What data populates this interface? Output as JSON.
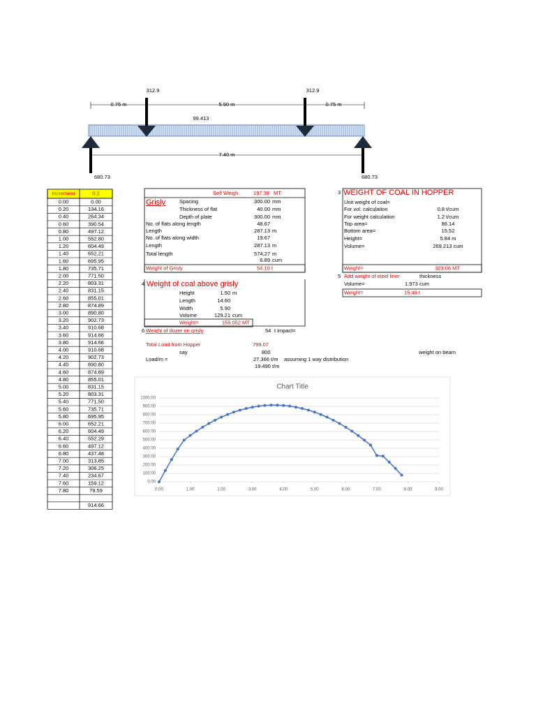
{
  "beam": {
    "load_left": "312.9",
    "load_right": "312.9",
    "dim_left": "0.75 m",
    "dim_mid": "5.90 m",
    "dim_right": "0.75 m",
    "udl": "99.413",
    "span": "7.40 m",
    "reaction_left": "680.73",
    "reaction_right": "680.73"
  },
  "table": {
    "header": [
      "Increment",
      "0.2"
    ],
    "rows": [
      [
        "0.00",
        "0.00"
      ],
      [
        "0.20",
        "134.16"
      ],
      [
        "0.40",
        "264.34"
      ],
      [
        "0.60",
        "390.54"
      ],
      [
        "0.80",
        "497.12"
      ],
      [
        "1.00",
        "552.80"
      ],
      [
        "1.20",
        "604.49"
      ],
      [
        "1.40",
        "652.21"
      ],
      [
        "1.60",
        "695.95"
      ],
      [
        "1.80",
        "735.71"
      ],
      [
        "2.00",
        "771.50"
      ],
      [
        "2.20",
        "803.31"
      ],
      [
        "2.40",
        "831.15"
      ],
      [
        "2.60",
        "855.01"
      ],
      [
        "2.80",
        "874.89"
      ],
      [
        "3.00",
        "890.80"
      ],
      [
        "3.20",
        "902.73"
      ],
      [
        "3.40",
        "910.68"
      ],
      [
        "3.60",
        "914.66"
      ],
      [
        "3.80",
        "914.66"
      ],
      [
        "4.00",
        "910.68"
      ],
      [
        "4.20",
        "902.73"
      ],
      [
        "4.40",
        "890.80"
      ],
      [
        "4.60",
        "874.89"
      ],
      [
        "4.80",
        "855.01"
      ],
      [
        "5.00",
        "831.15"
      ],
      [
        "5.20",
        "803.31"
      ],
      [
        "5.40",
        "771.50"
      ],
      [
        "5.60",
        "735.71"
      ],
      [
        "5.80",
        "695.95"
      ],
      [
        "6.00",
        "652.21"
      ],
      [
        "6.20",
        "604.49"
      ],
      [
        "6.40",
        "552.29"
      ],
      [
        "6.60",
        "497.12"
      ],
      [
        "6.80",
        "437.48"
      ],
      [
        "7.00",
        "313.85"
      ],
      [
        "7.20",
        "306.25"
      ],
      [
        "7.40",
        "234.67"
      ],
      [
        "7.60",
        "159.12"
      ],
      [
        "7.80",
        "79.59"
      ]
    ],
    "total": "914.66"
  },
  "grisly": {
    "self_weight": {
      "label": "Self Weigh",
      "value": "197.38",
      "unit": "MT"
    },
    "title": "Grisly",
    "rows": [
      {
        "label": "Spacing",
        "value": "300.00",
        "unit": "mm"
      },
      {
        "label": "Thickness of flat",
        "value": "40.00",
        "unit": "mm"
      },
      {
        "label": "Depth of plate",
        "value": "300.00",
        "unit": "mm"
      },
      {
        "label": "No. of flats along length",
        "value": "48.67"
      },
      {
        "label": "Length",
        "value": "287.13",
        "unit": "m"
      },
      {
        "label": "No. of flats along width",
        "value": "19.67"
      },
      {
        "label": "Length",
        "value": "287.13",
        "unit": "m"
      },
      {
        "label": "Total length",
        "value": "574.27",
        "unit": "m"
      },
      {
        "value": "6.89",
        "unit": "cum"
      }
    ],
    "weight": {
      "label": "Weight of Grisly",
      "value": "54.10 t"
    }
  },
  "coal_above": {
    "number": "4",
    "title": "Weight of  coal above grisly",
    "rows": [
      {
        "label": "Height",
        "value": "1.50",
        "unit": "m"
      },
      {
        "label": "Length",
        "value": "14.60"
      },
      {
        "label": "Width",
        "value": "5.90"
      },
      {
        "label": "Volume",
        "value": "129.21",
        "unit": "cum"
      }
    ],
    "weight": {
      "label": "Weight=",
      "value": "155.052",
      "unit": "MT"
    }
  },
  "dozer": {
    "number": "6",
    "label": "Weight of dozer on grisly",
    "value": "54",
    "unit": "t impact="
  },
  "total_load": {
    "label": "Total Load from Hopper",
    "value": "799.07",
    "say_label": "say",
    "say_value": "800",
    "load_label": "Load/m =",
    "load_value": "27.366 t/m",
    "load_note": "assuming 1 way distribution",
    "beam_value": "19.490 t/m",
    "beam_note": "weight on beam"
  },
  "hopper": {
    "number": "3",
    "title": "WEIGHT OF COAL IN HOPPER",
    "rows": [
      {
        "label": "Unit weight of coal="
      },
      {
        "label": "For vol. calculation",
        "value": "0.8 t/cum"
      },
      {
        "label": "For weight calculation",
        "value": "1.2 t/cum"
      },
      {
        "label": "Top area=",
        "value": "86.14"
      },
      {
        "label": "Bottom area=",
        "value": "15.52"
      },
      {
        "label": "Height=",
        "value": "5.84 m"
      },
      {
        "label": "Volume=",
        "value": "269.213 cum"
      }
    ],
    "weight": {
      "label": "Weight=",
      "value": "323.06 MT"
    }
  },
  "liner": {
    "number": "5",
    "title": "Add weight of steel liner",
    "note": "thickness",
    "volume_label": "Volume=",
    "volume_value": "1.973 cum",
    "weight_label": "Weight=",
    "weight_value": "15.49 t"
  },
  "chart_data": {
    "type": "line",
    "title": "Chart Title",
    "markers": true,
    "grid": true,
    "x": [
      0,
      0.2,
      0.4,
      0.6,
      0.8,
      1,
      1.2,
      1.4,
      1.6,
      1.8,
      2,
      2.2,
      2.4,
      2.6,
      2.8,
      3,
      3.2,
      3.4,
      3.6,
      3.8,
      4,
      4.2,
      4.4,
      4.6,
      4.8,
      5,
      5.2,
      5.4,
      5.6,
      5.8,
      6,
      6.2,
      6.4,
      6.6,
      6.8,
      7,
      7.2,
      7.4,
      7.6,
      7.8
    ],
    "series": [
      {
        "color": "#4472c4",
        "values": [
          0,
          134.16,
          264.34,
          390.54,
          497.12,
          552.8,
          604.49,
          652.21,
          695.95,
          735.71,
          771.5,
          803.31,
          831.15,
          855.01,
          874.89,
          890.8,
          902.73,
          910.68,
          914.66,
          914.66,
          910.68,
          902.73,
          890.8,
          874.89,
          855.01,
          831.15,
          803.31,
          771.5,
          735.71,
          695.95,
          652.21,
          604.49,
          552.29,
          497.12,
          437.48,
          313.85,
          306.25,
          234.67,
          159.12,
          79.59
        ]
      }
    ],
    "xlim": [
      0,
      9
    ],
    "ylim": [
      0,
      1000
    ],
    "xticks": [
      {
        "value": 0,
        "label": "0.00"
      },
      {
        "value": 1,
        "label": "1.00"
      },
      {
        "value": 2,
        "label": "2.00"
      },
      {
        "value": 3,
        "label": "3.00"
      },
      {
        "value": 4,
        "label": "4.00"
      },
      {
        "value": 5,
        "label": "5.00"
      },
      {
        "value": 6,
        "label": "6.00"
      },
      {
        "value": 7,
        "label": "7.00"
      },
      {
        "value": 8,
        "label": "8.00"
      },
      {
        "value": 9,
        "label": "9.00"
      }
    ],
    "yticks": [
      {
        "value": 0,
        "label": "0.00"
      },
      {
        "value": 100,
        "label": "100.00"
      },
      {
        "value": 200,
        "label": "200.00"
      },
      {
        "value": 300,
        "label": "300.00"
      },
      {
        "value": 400,
        "label": "400.00"
      },
      {
        "value": 500,
        "label": "500.00"
      },
      {
        "value": 600,
        "label": "600.00"
      },
      {
        "value": 700,
        "label": "700.00"
      },
      {
        "value": 800,
        "label": "800.00"
      },
      {
        "value": 900,
        "label": "900.00"
      },
      {
        "value": 1000,
        "label": "1000.00"
      }
    ]
  }
}
